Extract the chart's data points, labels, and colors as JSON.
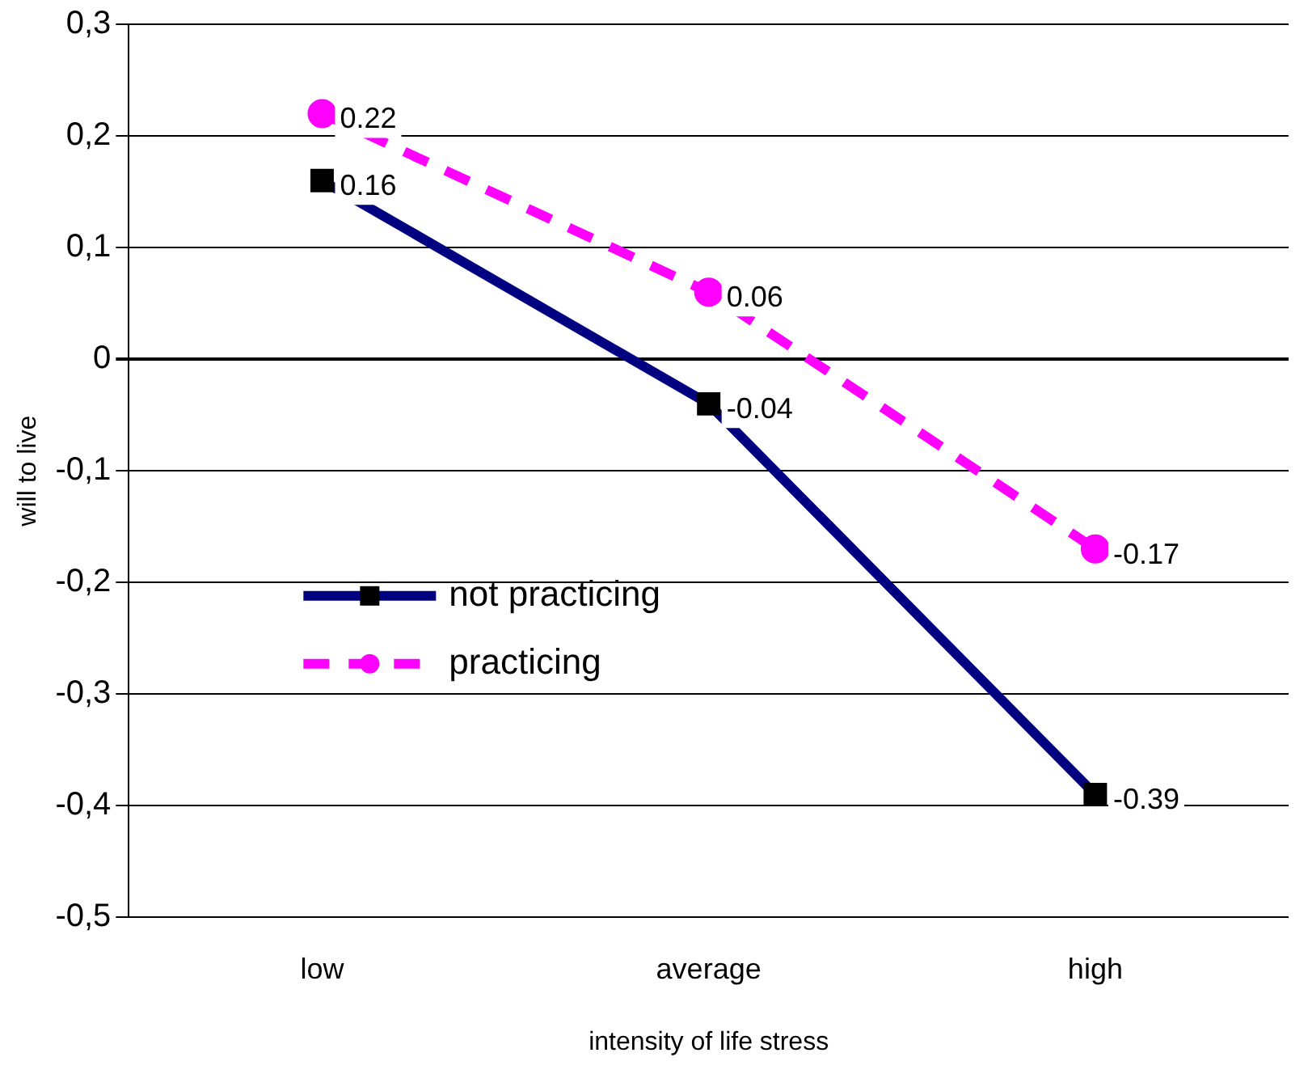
{
  "chart_data": {
    "type": "line",
    "xlabel": "intensity of life stress",
    "ylabel": "will to live",
    "categories": [
      "low",
      "average",
      "high"
    ],
    "series": [
      {
        "name": "not practicing",
        "color": "#000080",
        "marker": "square",
        "line_style": "solid",
        "values": [
          0.16,
          -0.04,
          -0.39
        ]
      },
      {
        "name": "practicing",
        "color": "#ff00ff",
        "marker": "circle",
        "line_style": "dashed",
        "values": [
          0.22,
          0.06,
          -0.17
        ]
      }
    ],
    "ylim": [
      -0.5,
      0.3
    ],
    "yticks": [
      {
        "value": -0.5,
        "label": "-0,5"
      },
      {
        "value": -0.4,
        "label": "-0,4"
      },
      {
        "value": -0.3,
        "label": "-0,3"
      },
      {
        "value": -0.2,
        "label": "-0,2"
      },
      {
        "value": -0.1,
        "label": "-0,1"
      },
      {
        "value": 0,
        "label": "0"
      },
      {
        "value": 0.1,
        "label": "0,1"
      },
      {
        "value": 0.2,
        "label": "0,2"
      },
      {
        "value": 0.3,
        "label": "0,3"
      }
    ],
    "grid": "y",
    "legend": "left",
    "data_labels": true
  }
}
